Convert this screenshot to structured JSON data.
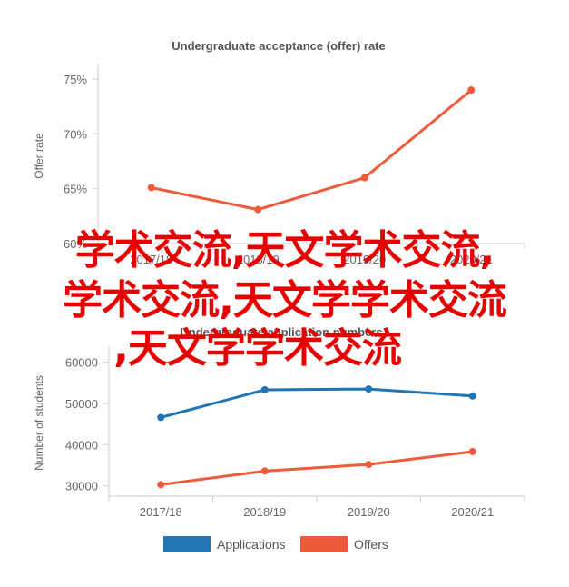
{
  "chart_data": [
    {
      "type": "line",
      "title": "Undergraduate acceptance (offer) rate",
      "ylabel": "Offer rate",
      "xlabel": "",
      "categories": [
        "2017/18",
        "2018/19",
        "2019/20",
        "2020/21"
      ],
      "yticks": [
        "60%",
        "65%",
        "70%",
        "75%"
      ],
      "ylim": [
        60,
        76
      ],
      "series": [
        {
          "values": [
            65.1,
            63.1,
            66.0,
            74.0
          ],
          "color": "#ee5b3b"
        }
      ],
      "grid": false
    },
    {
      "type": "line",
      "title": "Undergraduate application numbers",
      "ylabel": "Number of students",
      "xlabel": "",
      "categories": [
        "2017/18",
        "2018/19",
        "2019/20",
        "2020/21"
      ],
      "yticks": [
        "30000",
        "40000",
        "50000",
        "60000"
      ],
      "ylim": [
        27500,
        63000
      ],
      "series": [
        {
          "name": "Applications",
          "values": [
            46600,
            53300,
            53500,
            51800
          ],
          "color": "#2175b5"
        },
        {
          "name": "Offers",
          "values": [
            30300,
            33600,
            35200,
            38300
          ],
          "color": "#ee5b3b"
        }
      ],
      "legend": "bottom",
      "grid": false
    }
  ],
  "overlay_text": [
    "学术交流,天文学术交流,",
    "学术交流,天文学学术交流",
    ",天文学学术交流"
  ]
}
